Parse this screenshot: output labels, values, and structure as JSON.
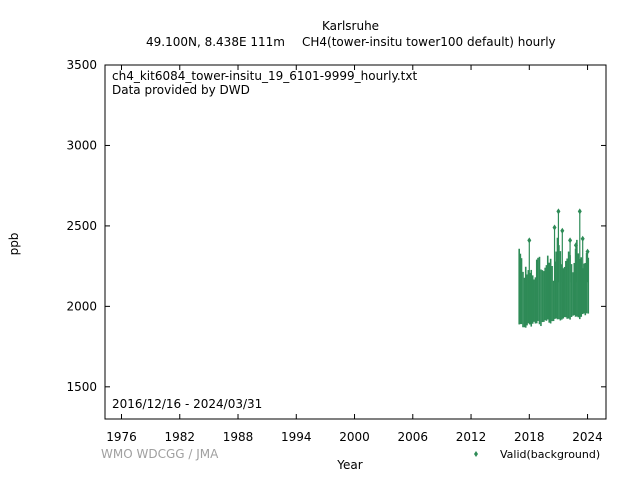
{
  "header": {
    "station": "Karlsruhe",
    "location": "49.100N, 8.438E 111m",
    "series_desc": "CH4(tower-insitu tower100 default) hourly"
  },
  "annotations": {
    "filename": "ch4_kit6084_tower-insitu_19_6101-9999_hourly.txt",
    "provider": "Data provided by DWD",
    "date_range": "2016/12/16 - 2024/03/31",
    "credit": "WMO WDCGG / JMA"
  },
  "chart_data": {
    "type": "scatter",
    "title": "Karlsruhe",
    "xlabel": "Year",
    "ylabel": "ppb",
    "xlim": [
      1974.3,
      2025.9
    ],
    "ylim": [
      1300,
      3500
    ],
    "xticks": [
      1976,
      1982,
      1988,
      1994,
      2000,
      2006,
      2012,
      2018,
      2024
    ],
    "yticks": [
      1500,
      2000,
      2500,
      3000,
      3500
    ],
    "grid": false,
    "legend_position": "bottom-right",
    "series": [
      {
        "name": "Valid(background)",
        "color": "#2e8b57",
        "envelope": {
          "x": [
            2016.96,
            2017.2,
            2017.5,
            2017.9,
            2018.2,
            2018.5,
            2018.9,
            2019.2,
            2019.5,
            2019.9,
            2020.2,
            2020.5,
            2020.9,
            2021.2,
            2021.5,
            2021.9,
            2022.2,
            2022.5,
            2022.9,
            2023.2,
            2023.5,
            2023.9,
            2024.25
          ],
          "low": [
            1895,
            1890,
            1875,
            1900,
            1885,
            1905,
            1910,
            1890,
            1915,
            1920,
            1900,
            1925,
            1930,
            1915,
            1935,
            1940,
            1925,
            1945,
            1950,
            1935,
            1955,
            1960,
            1960
          ],
          "high": [
            2340,
            2300,
            2190,
            2240,
            2200,
            2170,
            2300,
            2260,
            2190,
            2320,
            2280,
            2200,
            2400,
            2350,
            2210,
            2340,
            2300,
            2220,
            2380,
            2330,
            2230,
            2340,
            2240
          ]
        },
        "spikes": [
          {
            "x": 2018.0,
            "y": 2410
          },
          {
            "x": 2020.6,
            "y": 2490
          },
          {
            "x": 2021.0,
            "y": 2590
          },
          {
            "x": 2021.4,
            "y": 2470
          },
          {
            "x": 2022.2,
            "y": 2410
          },
          {
            "x": 2022.8,
            "y": 2380
          },
          {
            "x": 2023.2,
            "y": 2590
          },
          {
            "x": 2023.5,
            "y": 2420
          },
          {
            "x": 2024.0,
            "y": 2340
          }
        ]
      }
    ]
  }
}
